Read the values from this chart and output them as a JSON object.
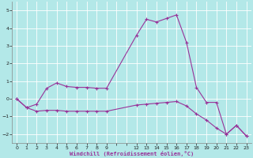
{
  "line1_x": [
    0,
    1,
    2,
    3,
    4,
    5,
    6,
    7,
    8,
    9,
    12,
    13,
    14,
    15,
    16,
    17,
    18,
    19,
    20,
    21,
    22,
    23
  ],
  "line1_y": [
    0.0,
    -0.5,
    -0.3,
    0.6,
    0.9,
    0.7,
    0.65,
    0.65,
    0.6,
    0.6,
    3.6,
    4.5,
    4.35,
    4.55,
    4.75,
    3.2,
    0.65,
    -0.2,
    -0.2,
    -2.0,
    -1.5,
    -2.1
  ],
  "line2_x": [
    0,
    1,
    2,
    3,
    4,
    5,
    6,
    7,
    8,
    9,
    12,
    13,
    14,
    15,
    16,
    17,
    18,
    19,
    20,
    21,
    22,
    23
  ],
  "line2_y": [
    0.0,
    -0.5,
    -0.7,
    -0.65,
    -0.65,
    -0.7,
    -0.7,
    -0.7,
    -0.7,
    -0.7,
    -0.35,
    -0.3,
    -0.25,
    -0.2,
    -0.15,
    -0.4,
    -0.85,
    -1.2,
    -1.65,
    -2.0,
    -1.5,
    -2.1
  ],
  "line_color": "#993399",
  "marker": "+",
  "marker_size": 3,
  "marker_linewidth": 0.8,
  "line_linewidth": 0.8,
  "bg_color": "#b3e8e8",
  "grid_color": "#ffffff",
  "xlabel": "Windchill (Refroidissement éolien,°C)",
  "xlim": [
    -0.5,
    23.5
  ],
  "ylim": [
    -2.5,
    5.5
  ],
  "yticks": [
    -2,
    -1,
    0,
    1,
    2,
    3,
    4,
    5
  ],
  "xticks_all": [
    0,
    1,
    2,
    3,
    4,
    5,
    6,
    7,
    8,
    9,
    10,
    11,
    12,
    13,
    14,
    15,
    16,
    17,
    18,
    19,
    20,
    21,
    22,
    23
  ],
  "xtick_labels": [
    "0",
    "1",
    "2",
    "3",
    "4",
    "5",
    "6",
    "7",
    "8",
    "9",
    "",
    "",
    "12",
    "13",
    "14",
    "15",
    "16",
    "17",
    "18",
    "19",
    "20",
    "21",
    "22",
    "23"
  ]
}
